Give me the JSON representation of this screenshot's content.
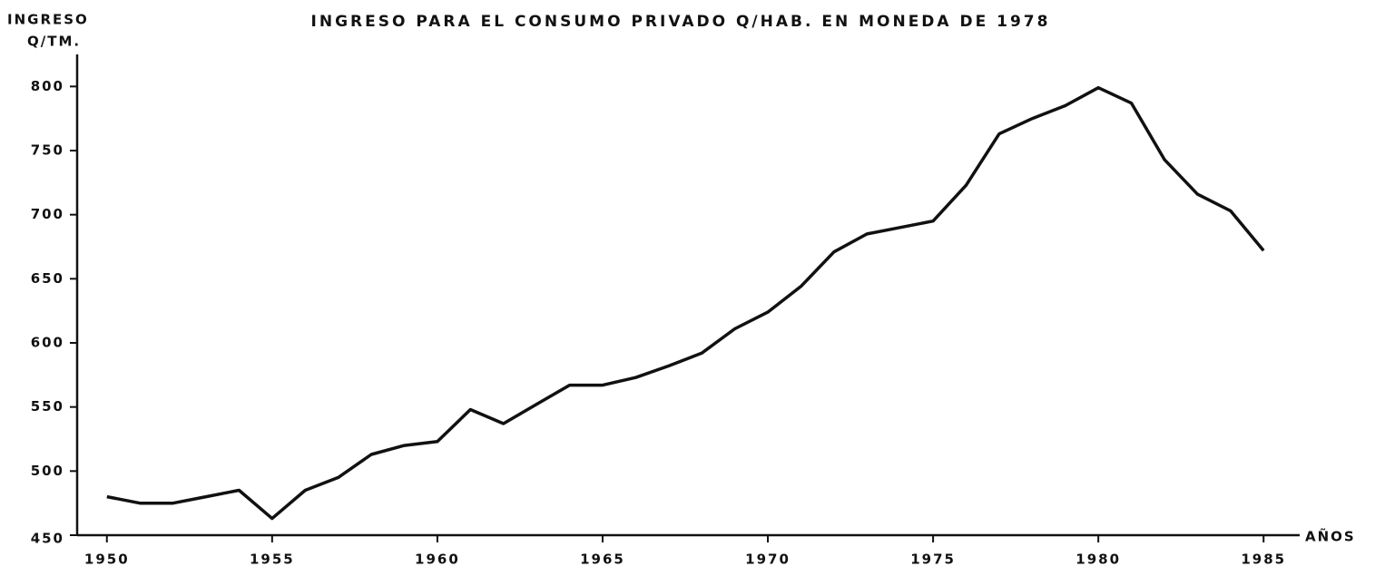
{
  "chart_data": {
    "type": "line",
    "title": "INGRESO PARA EL CONSUMO PRIVADO Q/HAB. EN MONEDA DE 1978",
    "y_label": [
      "INGRESO",
      "Q/TM."
    ],
    "x_label": "AÑOS",
    "x": [
      1950,
      1951,
      1952,
      1953,
      1954,
      1955,
      1956,
      1957,
      1958,
      1959,
      1960,
      1961,
      1962,
      1963,
      1964,
      1965,
      1966,
      1967,
      1968,
      1969,
      1970,
      1971,
      1972,
      1973,
      1974,
      1975,
      1976,
      1977,
      1978,
      1979,
      1980,
      1981,
      1982,
      1983,
      1984,
      1985
    ],
    "series": [
      {
        "name": "Ingreso",
        "color": "#111111",
        "values": [
          480,
          475,
          475,
          480,
          485,
          463,
          485,
          495,
          513,
          520,
          523,
          548,
          537,
          552,
          567,
          567,
          573,
          582,
          592,
          611,
          624,
          644,
          671,
          685,
          690,
          695,
          723,
          763,
          775,
          785,
          799,
          787,
          743,
          716,
          703,
          672
        ]
      }
    ],
    "xlim": [
      1949.1,
      1985.9
    ],
    "xticks": [
      1950,
      1955,
      1960,
      1965,
      1970,
      1975,
      1980,
      1985
    ],
    "ylim": [
      450,
      825
    ],
    "yticks": [
      450,
      500,
      550,
      600,
      650,
      700,
      750,
      800
    ],
    "grid": false
  }
}
